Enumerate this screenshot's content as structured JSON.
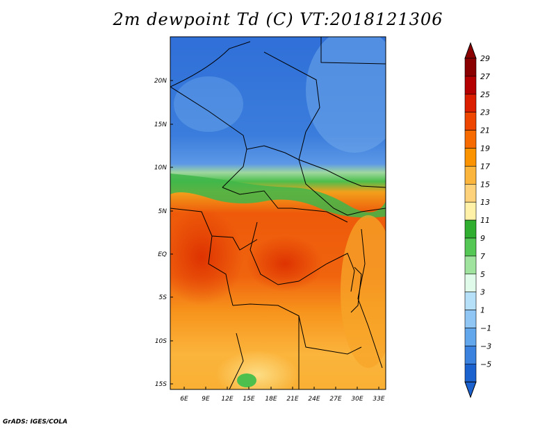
{
  "title": "2m dewpoint Td (C) VT:2018121306",
  "credit": "GrADS: IGES/COLA",
  "map": {
    "lat_labels": [
      "20N",
      "15N",
      "10N",
      "5N",
      "EQ",
      "5S",
      "10S",
      "15S"
    ],
    "lon_labels": [
      "6E",
      "9E",
      "12E",
      "15E",
      "18E",
      "21E",
      "24E",
      "27E",
      "30E",
      "33E"
    ]
  },
  "colorbar": {
    "labels": [
      "29",
      "27",
      "25",
      "23",
      "21",
      "19",
      "17",
      "15",
      "13",
      "11",
      "9",
      "7",
      "5",
      "3",
      "1",
      "−1",
      "−3",
      "−5"
    ],
    "colors": [
      "#8a0000",
      "#b40000",
      "#dc1e00",
      "#ee4600",
      "#f76a00",
      "#fb9200",
      "#fbb43c",
      "#fdd27a",
      "#fff2a8",
      "#2fae2f",
      "#55c755",
      "#9fe39f",
      "#e0fbe9",
      "#b6e0f8",
      "#8fc6f4",
      "#62a6ec",
      "#3a82de",
      "#1c62cf"
    ]
  }
}
